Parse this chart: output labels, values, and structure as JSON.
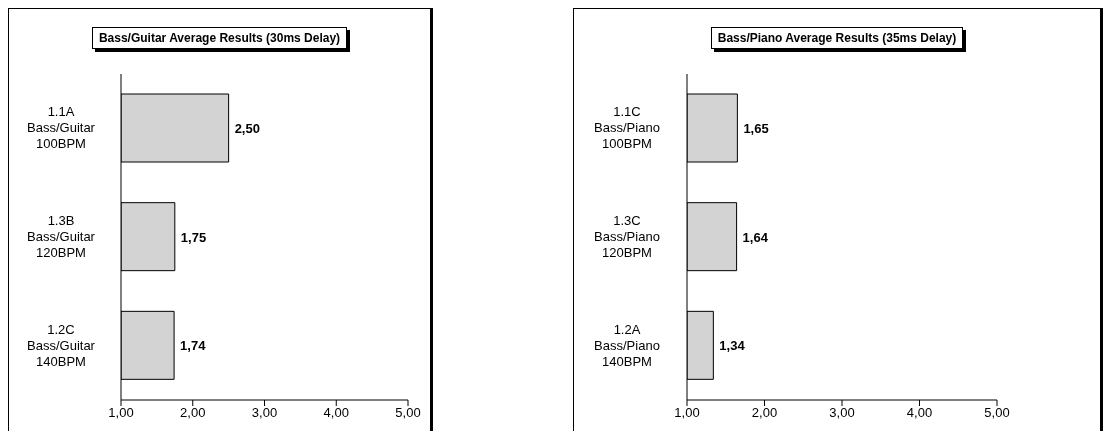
{
  "chart_data": [
    {
      "type": "bar",
      "orientation": "horizontal",
      "title": "Bass/Guitar Average Results (30ms Delay)",
      "categories": [
        "1.1A Bass/Guitar 100BPM",
        "1.3B Bass/Guitar 120BPM",
        "1.2C Bass/Guitar 140BPM"
      ],
      "values": [
        2.5,
        1.75,
        1.74
      ],
      "value_labels": [
        "2,50",
        "1,75",
        "1,74"
      ],
      "color": "#d3d3d3",
      "xlim": [
        1,
        5
      ],
      "xticks": [
        {
          "value": 1,
          "label": "1,00"
        },
        {
          "value": 2,
          "label": "2,00"
        },
        {
          "value": 3,
          "label": "3,00"
        },
        {
          "value": 4,
          "label": "4,00"
        },
        {
          "value": 5,
          "label": "5,00"
        }
      ],
      "grid": false
    },
    {
      "type": "bar",
      "orientation": "horizontal",
      "title": "Bass/Piano Average Results (35ms Delay)",
      "categories": [
        "1.1C Bass/Piano 100BPM",
        "1.3C Bass/Piano 120BPM",
        "1.2A Bass/Piano 140BPM"
      ],
      "values": [
        1.65,
        1.64,
        1.34
      ],
      "value_labels": [
        "1,65",
        "1,64",
        "1,34"
      ],
      "color": "#d3d3d3",
      "xlim": [
        1,
        5
      ],
      "xticks": [
        {
          "value": 1,
          "label": "1,00"
        },
        {
          "value": 2,
          "label": "2,00"
        },
        {
          "value": 3,
          "label": "3,00"
        },
        {
          "value": 4,
          "label": "4,00"
        },
        {
          "value": 5,
          "label": "5,00"
        }
      ],
      "grid": false
    }
  ]
}
